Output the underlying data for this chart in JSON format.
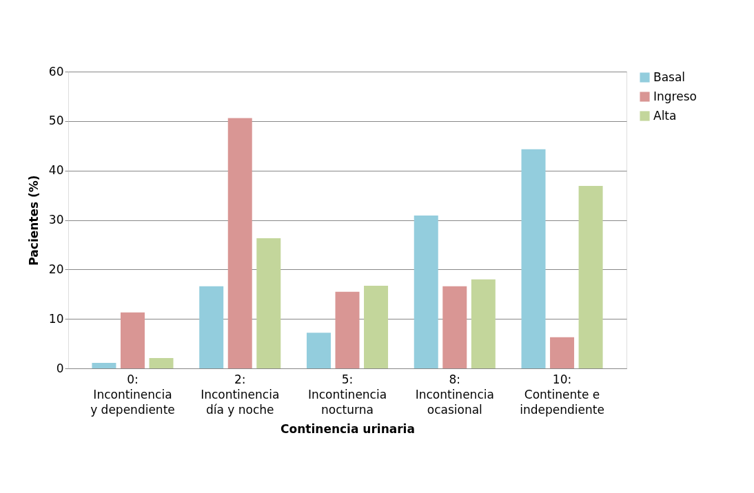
{
  "chart_data": {
    "type": "bar",
    "xlabel": "Continencia urinaria",
    "ylabel": "Pacientes (%)",
    "categories": [
      "0:\nIncontinencia\ny dependiente",
      "2:\nIncontinencia\ndía y noche",
      "5:\nIncontinencia\nnocturna",
      "8:\nIncontinencia\nocasional",
      "10:\nContinente e\nindependiente"
    ],
    "series": [
      {
        "name": "Basal",
        "color": "#93cddd",
        "values": [
          1.1,
          16.6,
          7.2,
          30.9,
          44.3
        ]
      },
      {
        "name": "Ingreso",
        "color": "#d99694",
        "values": [
          11.3,
          50.6,
          15.5,
          16.6,
          6.3
        ]
      },
      {
        "name": "Alta",
        "color": "#c3d69b",
        "values": [
          2.1,
          26.3,
          16.7,
          18.0,
          36.9
        ]
      }
    ],
    "ylim": [
      0,
      60
    ],
    "yticks": [
      0,
      10,
      20,
      30,
      40,
      50,
      60
    ],
    "grid": "y",
    "legend": "right"
  }
}
